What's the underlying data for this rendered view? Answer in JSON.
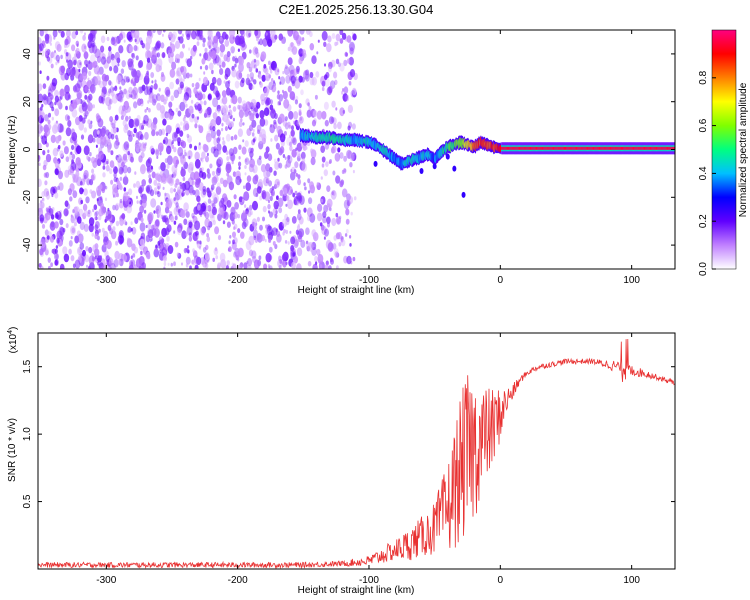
{
  "figure": {
    "title": "C2E1.2025.256.13.30.G04"
  },
  "chart_data": [
    {
      "type": "heatmap",
      "title": "C2E1.2025.256.13.30.G04",
      "xlabel": "Height of straight line (km)",
      "ylabel": "Frequency (Hz)",
      "xlim": [
        -352,
        133
      ],
      "ylim": [
        -50,
        50
      ],
      "x_ticks": [
        -300,
        -200,
        -100,
        0,
        100
      ],
      "y_ticks": [
        40,
        20,
        0,
        -20,
        -40
      ],
      "colorbar": {
        "label": "Normalized spectral amplitude",
        "range": [
          0,
          1
        ],
        "ticks": [
          "0.0",
          "0.2",
          "0.4",
          "0.6",
          "0.8"
        ],
        "colors": [
          "#ffffff",
          "#c080ff",
          "#6000ff",
          "#0000ff",
          "#00c0ff",
          "#00ff80",
          "#80ff00",
          "#ffff00",
          "#ff8000",
          "#ff0000",
          "#ff0080"
        ]
      },
      "noise_region": {
        "x_range": [
          -352,
          -120
        ],
        "amplitude_range": [
          0.05,
          0.2
        ]
      },
      "signal_trace": {
        "x": [
          -152,
          -140,
          -130,
          -120,
          -110,
          -100,
          -95,
          -90,
          -85,
          -80,
          -75,
          -70,
          -65,
          -60,
          -55,
          -50,
          -45,
          -40,
          -35,
          -30,
          -25,
          -20,
          -15,
          -10,
          -5,
          0,
          10,
          20,
          40,
          60,
          80,
          100,
          120,
          133
        ],
        "freq": [
          6,
          5,
          5,
          4,
          4,
          3,
          2,
          0,
          -2,
          -4,
          -6,
          -5,
          -4,
          -3,
          -2,
          -4,
          -1,
          1,
          2,
          3,
          2,
          1,
          3,
          2,
          1,
          0.5,
          0.5,
          0.5,
          0.5,
          0.5,
          0.5,
          0.5,
          0.5,
          0.5
        ],
        "amplitude": [
          0.4,
          0.45,
          0.5,
          0.45,
          0.4,
          0.45,
          0.4,
          0.45,
          0.4,
          0.35,
          0.4,
          0.45,
          0.4,
          0.4,
          0.45,
          0.35,
          0.45,
          0.5,
          0.55,
          0.6,
          0.7,
          0.8,
          0.85,
          0.85,
          0.85,
          0.95,
          0.95,
          0.95,
          0.95,
          0.95,
          0.95,
          0.95,
          0.95,
          0.95
        ]
      }
    },
    {
      "type": "line",
      "xlabel": "Height of straight line (km)",
      "ylabel": "SNR (10 * v/v)",
      "y_multiplier": "(x10",
      "y_multiplier_exp": "4",
      "xlim": [
        -352,
        133
      ],
      "ylim": [
        0,
        1.75
      ],
      "x_ticks": [
        -300,
        -200,
        -100,
        0,
        100
      ],
      "y_ticks": [
        "0.5",
        "1.0",
        "1.5"
      ],
      "series": [
        {
          "color": "#e83030",
          "x": [
            -352,
            -300,
            -250,
            -200,
            -150,
            -120,
            -110,
            -100,
            -90,
            -80,
            -70,
            -60,
            -50,
            -40,
            -35,
            -30,
            -25,
            -20,
            -15,
            -10,
            -5,
            0,
            5,
            10,
            15,
            20,
            25,
            30,
            40,
            50,
            60,
            70,
            80,
            90,
            100,
            110,
            120,
            133
          ],
          "y": [
            0.03,
            0.03,
            0.03,
            0.03,
            0.03,
            0.04,
            0.05,
            0.06,
            0.1,
            0.14,
            0.18,
            0.24,
            0.3,
            0.45,
            0.6,
            0.75,
            0.85,
            0.9,
            0.95,
            1.0,
            1.05,
            1.15,
            1.25,
            1.32,
            1.4,
            1.45,
            1.48,
            1.5,
            1.52,
            1.54,
            1.54,
            1.54,
            1.52,
            1.5,
            1.47,
            1.45,
            1.42,
            1.38
          ],
          "noise_amplitude": [
            0.02,
            0.02,
            0.02,
            0.02,
            0.02,
            0.02,
            0.03,
            0.04,
            0.06,
            0.08,
            0.12,
            0.15,
            0.2,
            0.35,
            0.45,
            0.55,
            0.6,
            0.55,
            0.45,
            0.35,
            0.3,
            0.2,
            0.1,
            0.06,
            0.03,
            0.02,
            0.02,
            0.02,
            0.02,
            0.02,
            0.02,
            0.02,
            0.03,
            0.05,
            0.04,
            0.03,
            0.02,
            0.02
          ]
        }
      ]
    }
  ]
}
